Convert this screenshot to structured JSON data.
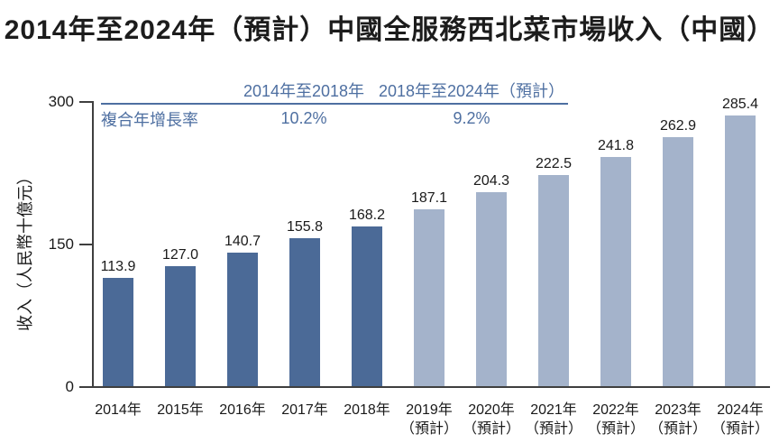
{
  "title": "2014年至2024年（預計）中國全服務西北菜市場收入（中國）",
  "cagr_table": {
    "row_label": "複合年增長率",
    "columns": [
      {
        "period": "2014年至2018年",
        "cagr": "10.2%"
      },
      {
        "period": "2018年至2024年（預計）",
        "cagr": "9.2%"
      }
    ]
  },
  "chart_data": {
    "type": "bar",
    "title": "2014年至2024年（預計）中國全服務西北菜市場收入（中國）",
    "ylabel": "收入（人民幣十億元）",
    "xlabel": "",
    "ylim": [
      0,
      300
    ],
    "yticks": [
      0,
      150,
      300
    ],
    "ytick_labels_top_to_bottom": [
      "300",
      "150",
      "0"
    ],
    "categories": [
      "2014年",
      "2015年",
      "2016年",
      "2017年",
      "2018年",
      "2019年",
      "2020年",
      "2021年",
      "2022年",
      "2023年",
      "2024年"
    ],
    "category_sublabels": [
      "",
      "",
      "",
      "",
      "",
      "（預計）",
      "（預計）",
      "（預計）",
      "（預計）",
      "（預計）",
      "（預計）"
    ],
    "values": [
      113.9,
      127.0,
      140.7,
      155.8,
      168.2,
      187.1,
      204.3,
      222.5,
      241.8,
      262.9,
      285.4
    ],
    "value_labels": [
      "113.9",
      "127.0",
      "140.7",
      "155.8",
      "168.2",
      "187.1",
      "204.3",
      "222.5",
      "241.8",
      "262.9",
      "285.4"
    ],
    "series_split": {
      "historical_years": 5,
      "forecast_years": 6
    },
    "grid": false,
    "legend": "none",
    "bar_colors": {
      "historical": "#4b6a97",
      "forecast": "#a4b3cb"
    }
  },
  "colors": {
    "accent_blue": "#4e6fa1",
    "axis": "#3f3f3f",
    "text": "#1a1a1a"
  }
}
